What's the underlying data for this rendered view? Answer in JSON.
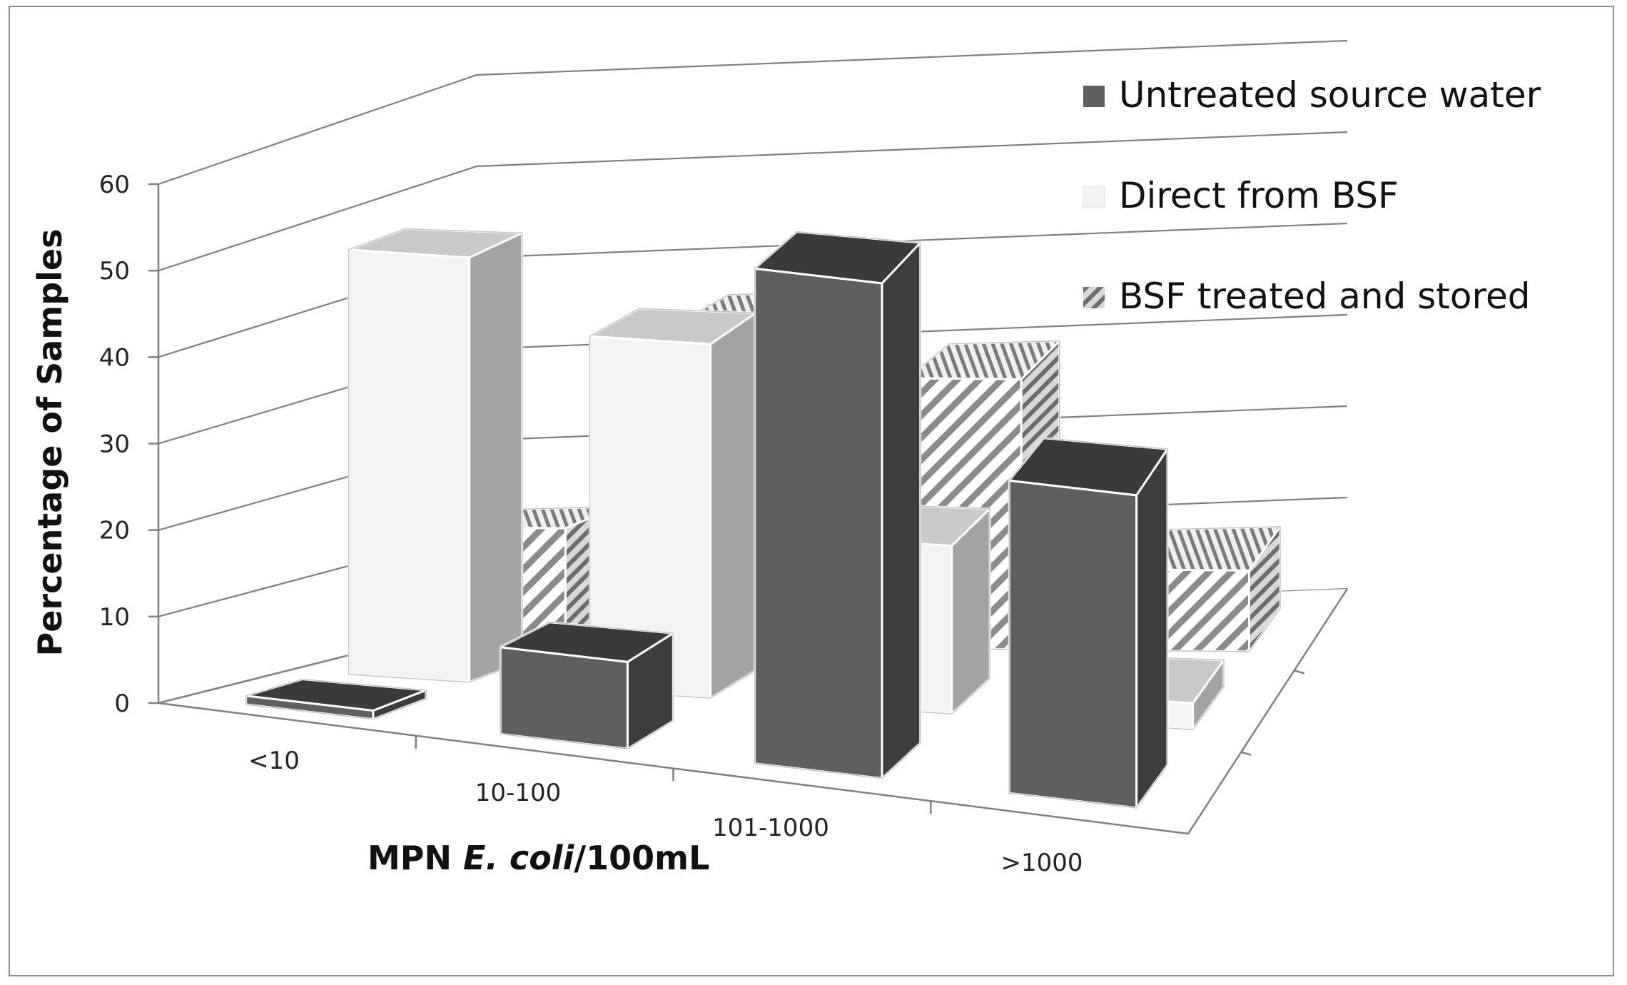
{
  "chart_data": {
    "type": "bar",
    "variant": "3d-clustered-bar",
    "categories": [
      "<10",
      "10-100",
      "101-1000",
      ">1000"
    ],
    "series": [
      {
        "name": "Untreated source water",
        "values": [
          1,
          10,
          57,
          36
        ],
        "color": "#5f5f5f",
        "pattern": "solid"
      },
      {
        "name": "Direct from BSF",
        "values": [
          48,
          40,
          19,
          3
        ],
        "color": "#f2f2f2",
        "pattern": "solid"
      },
      {
        "name": "BSF treated and stored",
        "values": [
          13,
          36,
          30,
          9
        ],
        "color": "#ffffff",
        "pattern": "diagonal-stripes"
      }
    ],
    "ylabel": "Percentage of Samples",
    "xlabel_parts": [
      {
        "text": "MPN ",
        "italic": false
      },
      {
        "text": "E. coli",
        "italic": true
      },
      {
        "text": "/100mL",
        "italic": false
      }
    ],
    "yticks": [
      "0",
      "10",
      "20",
      "30",
      "40",
      "50",
      "60"
    ],
    "ylim": [
      0,
      60
    ],
    "grid": true,
    "legend_position": "top-right"
  }
}
